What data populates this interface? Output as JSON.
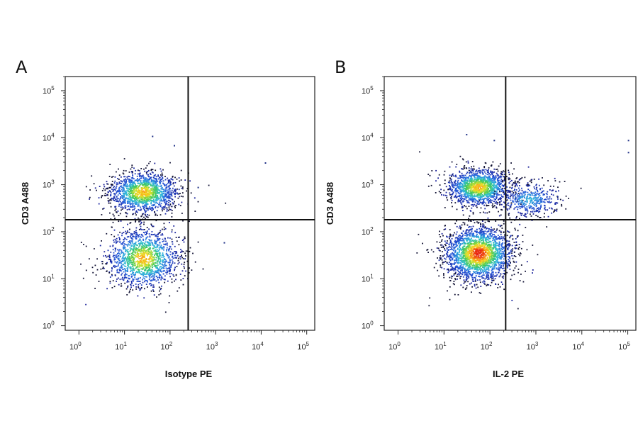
{
  "chart_data": [
    {
      "type": "scatter",
      "panel_label": "A",
      "xlabel": "Isotype PE",
      "ylabel": "CD3 A488",
      "x_scale": "log",
      "y_scale": "log",
      "xlim": [
        0.5,
        150000
      ],
      "ylim": [
        0.8,
        200000
      ],
      "x_ticks": [
        {
          "base": "10",
          "exp": "0"
        },
        {
          "base": "10",
          "exp": "1"
        },
        {
          "base": "10",
          "exp": "2"
        },
        {
          "base": "10",
          "exp": "3"
        },
        {
          "base": "10",
          "exp": "4"
        },
        {
          "base": "10",
          "exp": "5"
        }
      ],
      "y_ticks": [
        {
          "base": "10",
          "exp": "0"
        },
        {
          "base": "10",
          "exp": "1"
        },
        {
          "base": "10",
          "exp": "2"
        },
        {
          "base": "10",
          "exp": "3"
        },
        {
          "base": "10",
          "exp": "4"
        },
        {
          "base": "10",
          "exp": "5"
        }
      ],
      "gate": {
        "x": 250,
        "y": 180
      },
      "populations": [
        {
          "x_center": 25,
          "y_center": 700,
          "x_spread_decades": 0.38,
          "y_spread_decades": 0.22,
          "density": "high"
        },
        {
          "x_center": 25,
          "y_center": 28,
          "x_spread_decades": 0.4,
          "y_spread_decades": 0.32,
          "density": "high"
        }
      ],
      "outliers": [
        [
          40,
          11000
        ],
        [
          12000,
          3000
        ],
        [
          400,
          900
        ],
        [
          120,
          7000
        ],
        [
          1500,
          60
        ]
      ]
    },
    {
      "type": "scatter",
      "panel_label": "B",
      "xlabel": "IL-2 PE",
      "ylabel": "CD3 A488",
      "x_scale": "log",
      "y_scale": "log",
      "xlim": [
        0.5,
        150000
      ],
      "ylim": [
        0.8,
        200000
      ],
      "x_ticks": [
        {
          "base": "10",
          "exp": "0"
        },
        {
          "base": "10",
          "exp": "1"
        },
        {
          "base": "10",
          "exp": "2"
        },
        {
          "base": "10",
          "exp": "3"
        },
        {
          "base": "10",
          "exp": "4"
        },
        {
          "base": "10",
          "exp": "5"
        }
      ],
      "y_ticks": [
        {
          "base": "10",
          "exp": "0"
        },
        {
          "base": "10",
          "exp": "1"
        },
        {
          "base": "10",
          "exp": "2"
        },
        {
          "base": "10",
          "exp": "3"
        },
        {
          "base": "10",
          "exp": "4"
        },
        {
          "base": "10",
          "exp": "5"
        }
      ],
      "gate": {
        "x": 220,
        "y": 180
      },
      "populations": [
        {
          "x_center": 55,
          "y_center": 900,
          "x_spread_decades": 0.35,
          "y_spread_decades": 0.2,
          "density": "high"
        },
        {
          "x_center": 55,
          "y_center": 35,
          "x_spread_decades": 0.38,
          "y_spread_decades": 0.3,
          "density": "very high"
        },
        {
          "x_center": 700,
          "y_center": 500,
          "x_spread_decades": 0.35,
          "y_spread_decades": 0.18,
          "density": "low"
        }
      ],
      "outliers": [
        [
          120,
          9000
        ],
        [
          30,
          12000
        ],
        [
          100000,
          9000
        ],
        [
          100000,
          5000
        ]
      ]
    }
  ]
}
